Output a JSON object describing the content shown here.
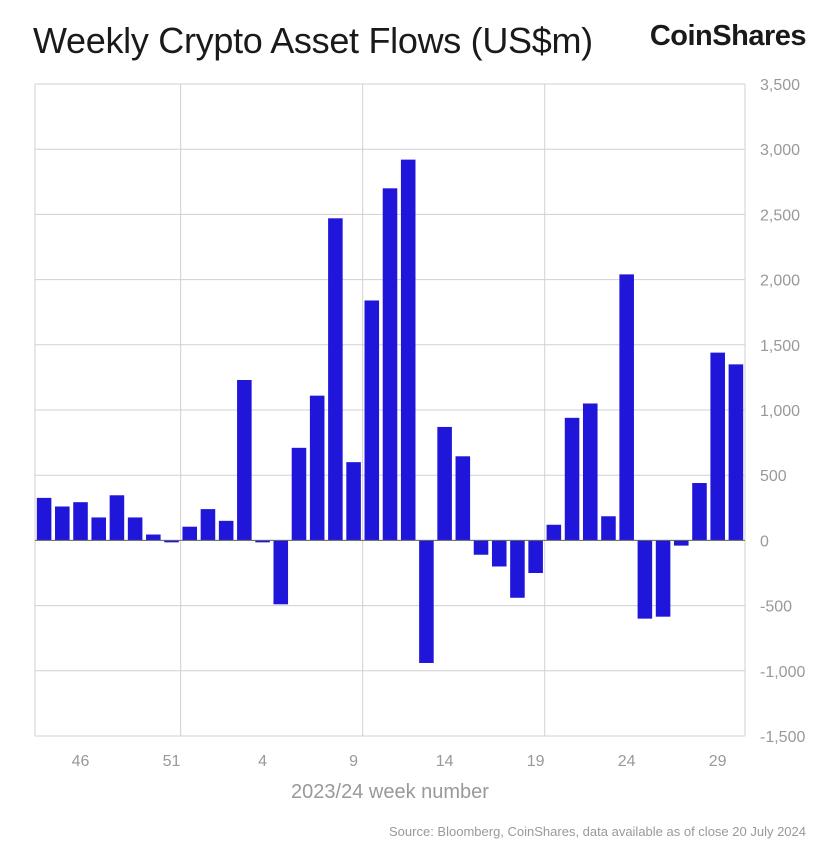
{
  "header": {
    "title": "Weekly Crypto Asset Flows (US$m)",
    "brand": "CoinShares"
  },
  "source": "Source: Bloomberg, CoinShares, data available as of close 20 July 2024",
  "colors": {
    "bar": "#1f16d9",
    "grid": "#d0d0d0",
    "axis_text": "#999999"
  },
  "chart_data": {
    "type": "bar",
    "xlabel": "2023/24 week number",
    "ylabel": "",
    "ylim": [
      -1500,
      3500
    ],
    "yticks": [
      3500,
      3000,
      2500,
      2000,
      1500,
      1000,
      500,
      0,
      -500,
      -1000,
      -1500
    ],
    "ytick_labels": [
      "3,500",
      "3,000",
      "2,500",
      "2,000",
      "1,500",
      "1,000",
      "500",
      "0",
      "-500",
      "-1,000",
      "-1,500"
    ],
    "y_axis_position": "right",
    "grid": true,
    "categories": [
      44,
      45,
      46,
      47,
      48,
      49,
      50,
      51,
      52,
      1,
      2,
      3,
      4,
      5,
      6,
      7,
      8,
      9,
      10,
      11,
      12,
      13,
      14,
      15,
      16,
      17,
      18,
      19,
      20,
      21,
      22,
      23,
      24,
      25,
      26,
      27,
      28,
      29,
      30
    ],
    "xtick_labels": [
      "46",
      "51",
      "4",
      "9",
      "14",
      "19",
      "24",
      "29"
    ],
    "xtick_categories": [
      46,
      51,
      4,
      9,
      14,
      19,
      24,
      29
    ],
    "values": [
      326,
      260,
      293,
      176,
      346,
      176,
      45,
      -15,
      105,
      240,
      150,
      1230,
      -15,
      -490,
      710,
      1110,
      2470,
      600,
      1840,
      2700,
      2920,
      -940,
      870,
      645,
      -110,
      -200,
      -440,
      -250,
      120,
      940,
      1050,
      185,
      2040,
      -600,
      -585,
      -40,
      440,
      1440,
      1350
    ]
  }
}
